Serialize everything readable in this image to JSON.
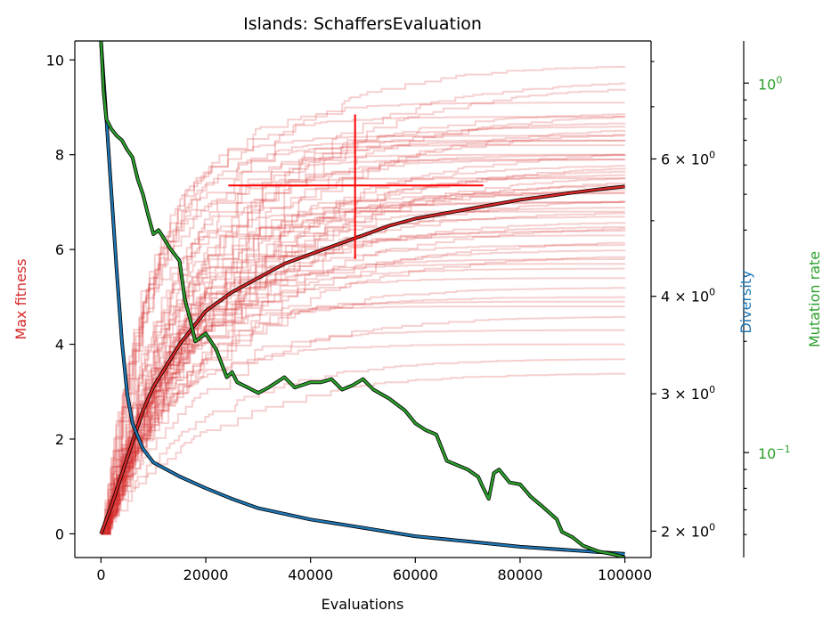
{
  "chart_data": {
    "type": "line",
    "title": "Islands: SchaffersEvaluation",
    "xlabel": "Evaluations",
    "x_ticks": [
      0,
      20000,
      40000,
      60000,
      80000,
      100000
    ],
    "x_tick_labels": [
      "0",
      "20000",
      "40000",
      "60000",
      "80000",
      "100000"
    ],
    "xlim": [
      -5000,
      105000
    ],
    "axes": {
      "left": {
        "label": "Max fitness",
        "color": "#d62728",
        "ylim": [
          -0.5,
          10.4
        ],
        "ticks": [
          0,
          2,
          4,
          6,
          8,
          10
        ],
        "tick_labels": [
          "0",
          "2",
          "4",
          "6",
          "8",
          "10"
        ]
      },
      "right_diversity": {
        "label": "Diversity",
        "color": "#1f77b4",
        "scale": "log",
        "ylim": [
          1.85,
          8.5
        ],
        "ticks": [
          2,
          3,
          4,
          6
        ],
        "tick_labels": [
          "2",
          "3",
          "4",
          "6"
        ],
        "tick_label_suffix_base": "10",
        "tick_label_exponent": "0"
      },
      "right_mutation": {
        "label": "Mutation rate",
        "color": "#2ca02c",
        "scale": "log",
        "ylim": [
          0.052,
          1.3
        ],
        "ticks": [
          0.1,
          1
        ],
        "tick_label_exponents": [
          "−1",
          "0"
        ]
      }
    },
    "series": [
      {
        "name": "Max fitness (mean)",
        "axis": "left",
        "color": "#d62728",
        "x": [
          0,
          2000,
          5000,
          8000,
          10000,
          15000,
          20000,
          25000,
          30000,
          35000,
          40000,
          45000,
          50000,
          55000,
          60000,
          65000,
          70000,
          75000,
          80000,
          85000,
          90000,
          95000,
          100000
        ],
        "y": [
          0,
          0.6,
          1.6,
          2.6,
          3.1,
          4.0,
          4.7,
          5.1,
          5.4,
          5.7,
          5.9,
          6.1,
          6.3,
          6.5,
          6.65,
          6.75,
          6.85,
          6.95,
          7.05,
          7.12,
          7.2,
          7.27,
          7.33
        ]
      },
      {
        "name": "Diversity",
        "axis": "right_diversity",
        "color": "#1f77b4",
        "x": [
          0,
          500,
          1000,
          2000,
          3000,
          4000,
          5000,
          6000,
          8000,
          10000,
          15000,
          20000,
          25000,
          30000,
          40000,
          50000,
          60000,
          70000,
          80000,
          90000,
          100000
        ],
        "y": [
          8.5,
          7.6,
          6.8,
          5.4,
          4.3,
          3.5,
          3.0,
          2.75,
          2.55,
          2.45,
          2.35,
          2.27,
          2.2,
          2.14,
          2.07,
          2.02,
          1.97,
          1.94,
          1.91,
          1.89,
          1.87
        ]
      },
      {
        "name": "Mutation rate",
        "axis": "right_mutation",
        "color": "#2ca02c",
        "x": [
          0,
          500,
          1000,
          2000,
          3000,
          4000,
          5000,
          6000,
          7000,
          8000,
          9000,
          10000,
          11000,
          12000,
          13000,
          15000,
          16000,
          17000,
          18000,
          20000,
          22000,
          24000,
          25000,
          26000,
          28000,
          30000,
          32000,
          35000,
          37000,
          40000,
          42000,
          44000,
          46000,
          48000,
          50000,
          52000,
          55000,
          58000,
          60000,
          62000,
          64000,
          66000,
          70000,
          72000,
          73000,
          74000,
          75000,
          76000,
          78000,
          80000,
          81000,
          82000,
          84000,
          86000,
          87000,
          88000,
          90000,
          92000,
          95000,
          98000,
          100000
        ],
        "y": [
          1.3,
          0.95,
          0.8,
          0.75,
          0.72,
          0.7,
          0.66,
          0.63,
          0.55,
          0.5,
          0.44,
          0.39,
          0.4,
          0.38,
          0.36,
          0.33,
          0.26,
          0.23,
          0.2,
          0.21,
          0.19,
          0.16,
          0.165,
          0.155,
          0.15,
          0.145,
          0.15,
          0.16,
          0.15,
          0.155,
          0.155,
          0.158,
          0.148,
          0.152,
          0.158,
          0.148,
          0.14,
          0.13,
          0.12,
          0.115,
          0.112,
          0.095,
          0.09,
          0.086,
          0.08,
          0.075,
          0.088,
          0.09,
          0.083,
          0.082,
          0.079,
          0.076,
          0.072,
          0.068,
          0.066,
          0.061,
          0.059,
          0.056,
          0.054,
          0.053,
          0.052
        ]
      }
    ],
    "background_runs": {
      "count": 60,
      "color": "#d62728",
      "axis": "left",
      "final_values": [
        9.9,
        9.6,
        9.5,
        9.1,
        8.9,
        8.8,
        8.7,
        8.6,
        8.5,
        8.4,
        8.3,
        8.2,
        8.1,
        8.0,
        7.9,
        7.8,
        7.7,
        7.6,
        7.5,
        7.4,
        7.3,
        7.2,
        7.1,
        7.0,
        6.9,
        6.8,
        6.7,
        6.6,
        6.5,
        6.4,
        6.3,
        6.2,
        6.0,
        5.9,
        5.8,
        5.6,
        5.4,
        5.2,
        5.0,
        4.8,
        4.6,
        4.3,
        4.0,
        3.7,
        3.4,
        7.6,
        7.8,
        8.0,
        8.3,
        7.5,
        7.0,
        6.8,
        6.5,
        7.9,
        8.6,
        8.9,
        7.2,
        6.1,
        5.7,
        4.9
      ]
    },
    "errorbar": {
      "axis": "left",
      "color": "#ff0000",
      "x": 48500,
      "y": 7.35,
      "xerr": [
        24300,
        73000
      ],
      "yerr": [
        5.8,
        8.85
      ]
    },
    "grid": false,
    "legend": "none"
  }
}
